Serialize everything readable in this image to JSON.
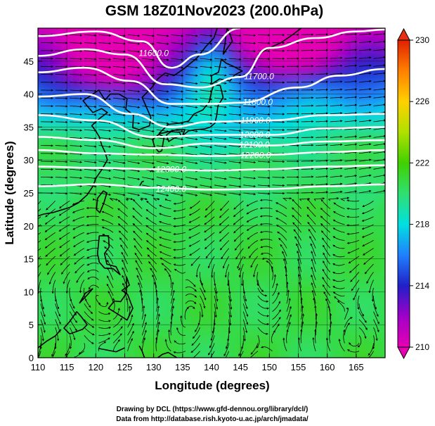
{
  "title": "GSM 18Z01Nov2023 (200.0hPa)",
  "xlabel": "Longitude (degrees)",
  "ylabel": "Latitude  (degrees)",
  "credits": [
    "Drawing by DCL (https://www.gfd-dennou.org/library/dcl/)",
    "Data from http://database.rish.kyoto-u.ac.jp/arch/jmadata/"
  ],
  "chart_data": {
    "type": "heatmap",
    "title": "GSM 18Z01Nov2023 (200.0hPa)",
    "xlabel": "Longitude (degrees)",
    "ylabel": "Latitude  (degrees)",
    "xlim": [
      110,
      170
    ],
    "ylim": [
      0,
      50
    ],
    "x_ticks": [
      "110",
      "115",
      "120",
      "125",
      "130",
      "135",
      "140",
      "145",
      "150",
      "155",
      "160",
      "165"
    ],
    "y_ticks": [
      "0",
      "5",
      "10",
      "15",
      "20",
      "25",
      "30",
      "35",
      "40",
      "45"
    ],
    "grid": true,
    "colorbar": {
      "min": 210,
      "max": 230,
      "ticks": [
        "210",
        "214",
        "218",
        "222",
        "226",
        "230"
      ],
      "colors": [
        "#e600b4",
        "#a000c8",
        "#2020c8",
        "#2080ff",
        "#00e0e0",
        "#30e070",
        "#40d000",
        "#b0e000",
        "#ffd000",
        "#ff8000",
        "#e02000"
      ]
    },
    "contour_labels": [
      "11600.0",
      "11700.0",
      "11800.0",
      "11900.0",
      "12000.0",
      "12100.0",
      "12200.0",
      "12300.0",
      "12400.0"
    ],
    "contour_lines": [
      {
        "label": "11600.0",
        "points": [
          [
            110,
            48.8
          ],
          [
            120,
            49.5
          ],
          [
            128,
            48.0
          ],
          [
            133,
            44.0
          ],
          [
            138,
            46.0
          ],
          [
            145,
            50.0
          ]
        ]
      },
      {
        "label": "11700.0",
        "points": [
          [
            110,
            45.8
          ],
          [
            118,
            46.8
          ],
          [
            125,
            46.0
          ],
          [
            132,
            41.5
          ],
          [
            138,
            41.0
          ],
          [
            145,
            42.6
          ],
          [
            150,
            47.0
          ],
          [
            158,
            48.5
          ],
          [
            165,
            49.5
          ],
          [
            170,
            49.8
          ]
        ]
      },
      {
        "label": "11800.0",
        "points": [
          [
            110,
            43.3
          ],
          [
            118,
            44.0
          ],
          [
            126,
            42.0
          ],
          [
            133,
            38.5
          ],
          [
            140,
            38.5
          ],
          [
            145,
            38.7
          ],
          [
            155,
            41.0
          ],
          [
            162,
            42.8
          ],
          [
            170,
            43.8
          ]
        ]
      },
      {
        "label": "11900.0",
        "points": [
          [
            110,
            39.6
          ],
          [
            118,
            40.0
          ],
          [
            126,
            37.0
          ],
          [
            133,
            35.0
          ],
          [
            140,
            35.8
          ],
          [
            150,
            36.0
          ],
          [
            160,
            36.8
          ],
          [
            170,
            37.0
          ]
        ]
      },
      {
        "label": "12000.0",
        "points": [
          [
            110,
            36.8
          ],
          [
            120,
            36.0
          ],
          [
            130,
            33.5
          ],
          [
            140,
            33.8
          ],
          [
            150,
            33.8
          ],
          [
            160,
            34.8
          ],
          [
            170,
            35.0
          ]
        ]
      },
      {
        "label": "12100.0",
        "points": [
          [
            110,
            33.5
          ],
          [
            120,
            33.0
          ],
          [
            130,
            31.8
          ],
          [
            140,
            32.5
          ],
          [
            150,
            32.2
          ],
          [
            160,
            32.8
          ],
          [
            170,
            33.0
          ]
        ]
      },
      {
        "label": "12200.0",
        "points": [
          [
            110,
            31.5
          ],
          [
            120,
            31.0
          ],
          [
            130,
            30.8
          ],
          [
            140,
            30.6
          ],
          [
            150,
            30.8
          ],
          [
            160,
            31.2
          ],
          [
            170,
            31.5
          ]
        ]
      },
      {
        "label": "12300.0",
        "points": [
          [
            110,
            29.0
          ],
          [
            120,
            28.8
          ],
          [
            130,
            28.6
          ],
          [
            140,
            28.4
          ],
          [
            150,
            28.6
          ],
          [
            160,
            29.0
          ],
          [
            170,
            29.2
          ]
        ]
      },
      {
        "label": "12400.0",
        "points": [
          [
            110,
            26.0
          ],
          [
            120,
            26.3
          ],
          [
            130,
            25.8
          ],
          [
            140,
            25.5
          ],
          [
            150,
            25.6
          ],
          [
            160,
            26.0
          ],
          [
            170,
            26.3
          ]
        ]
      }
    ],
    "contour_label_positions": [
      {
        "label": "11600.0",
        "x": 130.0,
        "y": 46.2
      },
      {
        "label": "11700.0",
        "x": 148.2,
        "y": 42.7
      },
      {
        "label": "11800.0",
        "x": 148.0,
        "y": 38.8
      },
      {
        "label": "11900.0",
        "x": 147.6,
        "y": 36.0
      },
      {
        "label": "12000.0",
        "x": 147.5,
        "y": 33.8
      },
      {
        "label": "12100.0",
        "x": 147.4,
        "y": 32.3
      },
      {
        "label": "12200.0",
        "x": 147.6,
        "y": 30.7
      },
      {
        "label": "12300.0",
        "x": 133.0,
        "y": 28.6
      },
      {
        "label": "12400.0",
        "x": 133.0,
        "y": 25.6
      }
    ]
  }
}
